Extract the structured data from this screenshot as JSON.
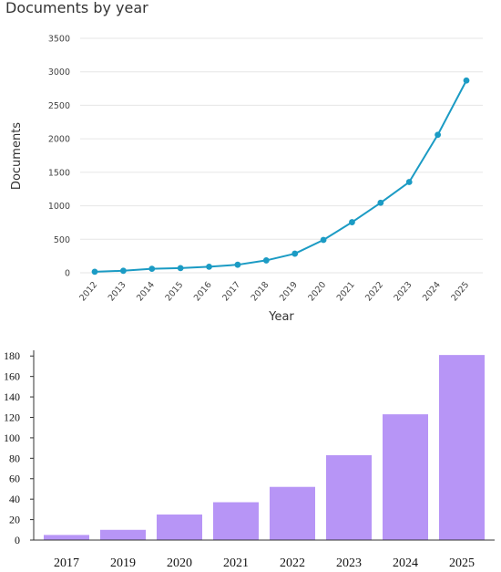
{
  "chart_data": [
    {
      "type": "line",
      "title": "Documents by year",
      "xlabel": "Year",
      "ylabel": "Documents",
      "ylim": [
        0,
        3500
      ],
      "yticks": [
        0,
        500,
        1000,
        1500,
        2000,
        2500,
        3000,
        3500
      ],
      "grid": true,
      "colors": {
        "line": "#1b9bc4",
        "grid": "#e6e6e6"
      },
      "x": [
        "2012",
        "2013",
        "2014",
        "2015",
        "2016",
        "2017",
        "2018",
        "2019",
        "2020",
        "2021",
        "2022",
        "2023",
        "2024",
        "2025"
      ],
      "series": [
        {
          "values": [
            15,
            30,
            60,
            70,
            90,
            120,
            185,
            285,
            490,
            755,
            1045,
            1355,
            2060,
            2870
          ]
        }
      ]
    },
    {
      "type": "bar",
      "title": "",
      "xlabel": "",
      "ylabel": "",
      "ylim": [
        0,
        180
      ],
      "yticks": [
        0,
        20,
        40,
        60,
        80,
        100,
        120,
        140,
        160,
        180
      ],
      "grid": false,
      "colors": {
        "bar": "#b795f6",
        "axis": "#333333"
      },
      "categories": [
        "2017",
        "2019",
        "2020",
        "2021",
        "2022",
        "2023",
        "2024",
        "2025"
      ],
      "values": [
        5,
        10,
        25,
        37,
        52,
        83,
        123,
        181
      ]
    }
  ]
}
